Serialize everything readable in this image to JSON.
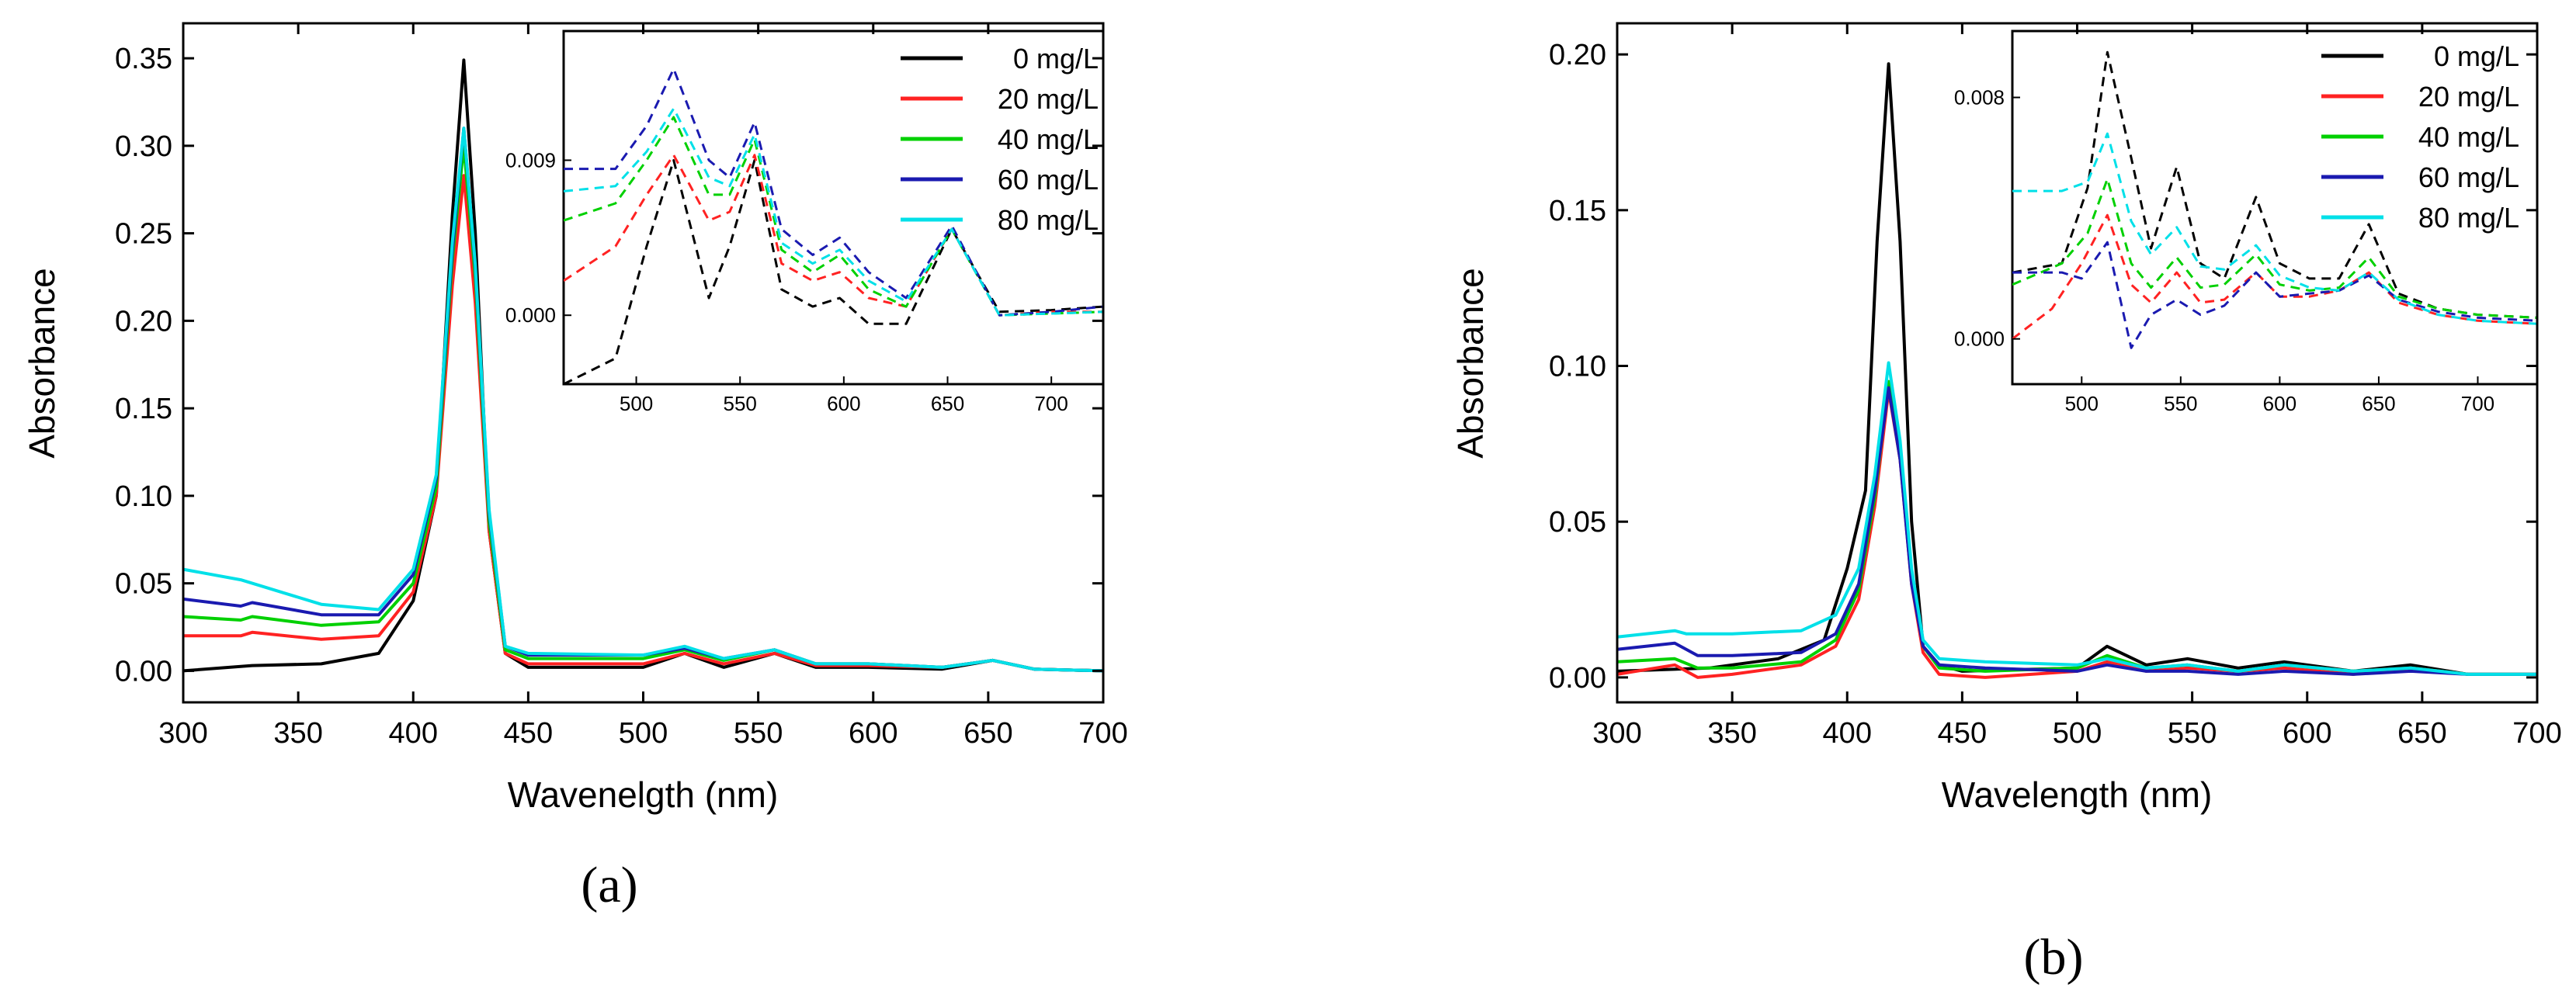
{
  "colors": {
    "0 mg/L": "#000000",
    "20 mg/L": "#ff2222",
    "40 mg/L": "#00d000",
    "60 mg/L": "#1a1ab0",
    "80 mg/L": "#00e0e8"
  },
  "chart_data": [
    {
      "panel": "(a)",
      "type": "line",
      "xlabel": "Wavenelgth (nm)",
      "ylabel": "Absorbance",
      "xlim": [
        300,
        700
      ],
      "ylim": [
        -0.018,
        0.37
      ],
      "xticks": [
        "300",
        "350",
        "400",
        "450",
        "500",
        "550",
        "600",
        "650",
        "700"
      ],
      "yticks": [
        "0.00",
        "0.05",
        "0.10",
        "0.15",
        "0.20",
        "0.25",
        "0.30",
        "0.35"
      ],
      "legend": [
        "0 mg/L",
        "20 mg/L",
        "40 mg/L",
        "60 mg/L",
        "80 mg/L"
      ],
      "series": [
        {
          "name": "0 mg/L",
          "x": [
            300,
            330,
            360,
            385,
            400,
            410,
            417,
            422,
            427,
            433,
            440,
            450,
            500,
            518,
            535,
            557,
            575,
            598,
            630,
            652,
            670,
            700
          ],
          "y": [
            0.0,
            0.003,
            0.004,
            0.01,
            0.04,
            0.1,
            0.26,
            0.349,
            0.25,
            0.08,
            0.01,
            0.002,
            0.002,
            0.01,
            0.002,
            0.01,
            0.002,
            0.002,
            0.001,
            0.006,
            0.001,
            0.0
          ]
        },
        {
          "name": "20 mg/L",
          "x": [
            300,
            325,
            330,
            360,
            385,
            400,
            410,
            417,
            422,
            427,
            433,
            440,
            450,
            500,
            518,
            535,
            557,
            575,
            598,
            630,
            652,
            670,
            700
          ],
          "y": [
            0.02,
            0.02,
            0.022,
            0.018,
            0.02,
            0.045,
            0.1,
            0.22,
            0.283,
            0.21,
            0.08,
            0.01,
            0.004,
            0.004,
            0.01,
            0.004,
            0.01,
            0.003,
            0.003,
            0.002,
            0.006,
            0.001,
            0.0
          ]
        },
        {
          "name": "40 mg/L",
          "x": [
            300,
            325,
            330,
            360,
            385,
            400,
            410,
            417,
            422,
            427,
            433,
            440,
            450,
            500,
            518,
            535,
            557,
            575,
            598,
            630,
            652,
            670,
            700
          ],
          "y": [
            0.031,
            0.029,
            0.031,
            0.026,
            0.028,
            0.05,
            0.105,
            0.235,
            0.3,
            0.225,
            0.085,
            0.012,
            0.007,
            0.007,
            0.012,
            0.006,
            0.012,
            0.004,
            0.004,
            0.002,
            0.006,
            0.001,
            0.0
          ]
        },
        {
          "name": "60 mg/L",
          "x": [
            300,
            325,
            330,
            360,
            385,
            400,
            410,
            417,
            422,
            427,
            433,
            440,
            450,
            500,
            518,
            535,
            557,
            575,
            598,
            630,
            652,
            670,
            700
          ],
          "y": [
            0.041,
            0.037,
            0.039,
            0.032,
            0.032,
            0.055,
            0.11,
            0.24,
            0.31,
            0.23,
            0.09,
            0.014,
            0.009,
            0.009,
            0.013,
            0.007,
            0.012,
            0.004,
            0.004,
            0.002,
            0.006,
            0.001,
            0.0
          ]
        },
        {
          "name": "80 mg/L",
          "x": [
            300,
            325,
            330,
            360,
            385,
            400,
            410,
            417,
            422,
            427,
            433,
            440,
            450,
            500,
            518,
            535,
            557,
            575,
            598,
            630,
            652,
            670,
            700
          ],
          "y": [
            0.058,
            0.052,
            0.05,
            0.038,
            0.035,
            0.058,
            0.112,
            0.245,
            0.31,
            0.232,
            0.092,
            0.014,
            0.01,
            0.009,
            0.014,
            0.007,
            0.012,
            0.004,
            0.004,
            0.002,
            0.006,
            0.001,
            0.0
          ]
        }
      ],
      "inset": {
        "xlim": [
          465,
          725
        ],
        "ylim": [
          -0.004,
          0.0165
        ],
        "xticks": [
          "500",
          "550",
          "600",
          "650",
          "700"
        ],
        "yticks": [
          "0.000",
          "0.009"
        ],
        "series": [
          {
            "name": "0 mg/L",
            "x": [
              465,
              490,
              505,
              518,
              535,
              545,
              557,
              570,
              585,
              598,
              612,
              630,
              652,
              675,
              700,
              725
            ],
            "y": [
              -0.004,
              -0.0025,
              0.004,
              0.009,
              0.001,
              0.004,
              0.009,
              0.0015,
              0.0005,
              0.001,
              -0.0005,
              -0.0005,
              0.005,
              0.0002,
              0.0003,
              0.0005
            ]
          },
          {
            "name": "20 mg/L",
            "x": [
              465,
              490,
              505,
              518,
              535,
              545,
              557,
              570,
              585,
              598,
              612,
              630,
              652,
              675,
              700,
              725
            ],
            "y": [
              0.002,
              0.004,
              0.007,
              0.0093,
              0.0055,
              0.006,
              0.0093,
              0.003,
              0.002,
              0.0025,
              0.001,
              0.0005,
              0.005,
              0.0,
              0.0002,
              0.0002
            ]
          },
          {
            "name": "40 mg/L",
            "x": [
              465,
              490,
              505,
              518,
              535,
              545,
              557,
              570,
              585,
              598,
              612,
              630,
              652,
              675,
              700,
              725
            ],
            "y": [
              0.0055,
              0.0065,
              0.009,
              0.0115,
              0.007,
              0.007,
              0.0102,
              0.0038,
              0.0025,
              0.0035,
              0.0015,
              0.0005,
              0.005,
              0.0,
              0.0001,
              0.0002
            ]
          },
          {
            "name": "60 mg/L",
            "x": [
              465,
              490,
              505,
              518,
              535,
              545,
              557,
              570,
              585,
              598,
              612,
              630,
              652,
              675,
              700,
              725
            ],
            "y": [
              0.0085,
              0.0085,
              0.011,
              0.0143,
              0.009,
              0.008,
              0.0112,
              0.005,
              0.0035,
              0.0045,
              0.0025,
              0.001,
              0.0052,
              0.0,
              0.0002,
              0.0005
            ]
          },
          {
            "name": "80 mg/L",
            "x": [
              465,
              490,
              505,
              518,
              535,
              545,
              557,
              570,
              585,
              598,
              612,
              630,
              652,
              675,
              700,
              725
            ],
            "y": [
              0.0072,
              0.0075,
              0.0095,
              0.012,
              0.008,
              0.0075,
              0.0105,
              0.0042,
              0.003,
              0.0038,
              0.002,
              0.0008,
              0.005,
              0.0,
              0.0001,
              0.0002
            ]
          }
        ]
      }
    },
    {
      "panel": "(b)",
      "type": "line",
      "xlabel": "Wavelength (nm)",
      "ylabel": "Absorbance",
      "xlim": [
        300,
        700
      ],
      "ylim": [
        -0.008,
        0.21
      ],
      "xticks": [
        "300",
        "350",
        "400",
        "450",
        "500",
        "550",
        "600",
        "650",
        "700"
      ],
      "yticks": [
        "0.00",
        "0.05",
        "0.10",
        "0.15",
        "0.20"
      ],
      "legend": [
        "0 mg/L",
        "20 mg/L",
        "40 mg/L",
        "60 mg/L",
        "80 mg/L"
      ],
      "series": [
        {
          "name": "0 mg/L",
          "x": [
            300,
            340,
            370,
            390,
            400,
            408,
            413,
            418,
            423,
            428,
            433,
            440,
            450,
            500,
            513,
            530,
            548,
            570,
            590,
            620,
            645,
            670,
            700
          ],
          "y": [
            0.002,
            0.003,
            0.006,
            0.012,
            0.035,
            0.06,
            0.14,
            0.197,
            0.14,
            0.05,
            0.01,
            0.004,
            0.002,
            0.003,
            0.01,
            0.004,
            0.006,
            0.003,
            0.005,
            0.002,
            0.004,
            0.001,
            0.001
          ]
        },
        {
          "name": "20 mg/L",
          "x": [
            300,
            325,
            335,
            350,
            380,
            395,
            405,
            412,
            418,
            423,
            428,
            433,
            440,
            460,
            500,
            513,
            530,
            548,
            570,
            590,
            620,
            645,
            670,
            700
          ],
          "y": [
            0.001,
            0.004,
            0.0,
            0.001,
            0.004,
            0.01,
            0.025,
            0.055,
            0.092,
            0.07,
            0.03,
            0.008,
            0.001,
            0.0,
            0.002,
            0.005,
            0.002,
            0.003,
            0.002,
            0.003,
            0.001,
            0.003,
            0.001,
            0.001
          ]
        },
        {
          "name": "40 mg/L",
          "x": [
            300,
            325,
            335,
            350,
            380,
            395,
            405,
            412,
            418,
            423,
            428,
            433,
            440,
            460,
            500,
            513,
            530,
            548,
            570,
            590,
            620,
            645,
            670,
            700
          ],
          "y": [
            0.005,
            0.006,
            0.003,
            0.003,
            0.005,
            0.012,
            0.028,
            0.058,
            0.095,
            0.072,
            0.032,
            0.01,
            0.003,
            0.002,
            0.003,
            0.007,
            0.003,
            0.004,
            0.002,
            0.004,
            0.002,
            0.003,
            0.001,
            0.001
          ]
        },
        {
          "name": "60 mg/L",
          "x": [
            300,
            325,
            335,
            350,
            380,
            395,
            405,
            412,
            418,
            423,
            428,
            433,
            440,
            460,
            500,
            513,
            530,
            548,
            570,
            590,
            620,
            645,
            670,
            700
          ],
          "y": [
            0.009,
            0.011,
            0.007,
            0.007,
            0.008,
            0.014,
            0.03,
            0.06,
            0.093,
            0.07,
            0.03,
            0.01,
            0.004,
            0.003,
            0.002,
            0.004,
            0.002,
            0.002,
            0.001,
            0.002,
            0.001,
            0.002,
            0.001,
            0.001
          ]
        },
        {
          "name": "80 mg/L",
          "x": [
            300,
            325,
            330,
            350,
            380,
            395,
            405,
            412,
            418,
            423,
            428,
            433,
            440,
            460,
            500,
            513,
            530,
            548,
            570,
            590,
            620,
            645,
            670,
            700
          ],
          "y": [
            0.013,
            0.015,
            0.014,
            0.014,
            0.015,
            0.02,
            0.035,
            0.065,
            0.101,
            0.076,
            0.035,
            0.012,
            0.006,
            0.005,
            0.004,
            0.006,
            0.003,
            0.004,
            0.002,
            0.004,
            0.002,
            0.003,
            0.001,
            0.001
          ]
        }
      ],
      "inset": {
        "xlim": [
          465,
          730
        ],
        "ylim": [
          -0.0015,
          0.0102
        ],
        "xticks": [
          "500",
          "550",
          "600",
          "650",
          "700"
        ],
        "yticks": [
          "0.000",
          "0.008"
        ],
        "series": [
          {
            "name": "0 mg/L",
            "x": [
              465,
              490,
              503,
              513,
              525,
              535,
              548,
              560,
              572,
              588,
              600,
              615,
              630,
              645,
              660,
              680,
              700,
              730
            ],
            "y": [
              0.0022,
              0.0025,
              0.005,
              0.0095,
              0.006,
              0.003,
              0.0057,
              0.0025,
              0.002,
              0.0047,
              0.0025,
              0.002,
              0.002,
              0.0038,
              0.0015,
              0.001,
              0.0008,
              0.0007
            ]
          },
          {
            "name": "20 mg/L",
            "x": [
              465,
              485,
              500,
              513,
              525,
              535,
              548,
              560,
              572,
              588,
              600,
              615,
              630,
              645,
              660,
              680,
              700,
              730
            ],
            "y": [
              0.0,
              0.001,
              0.0025,
              0.0041,
              0.0018,
              0.0012,
              0.0022,
              0.0012,
              0.0013,
              0.0022,
              0.0014,
              0.0014,
              0.0016,
              0.0022,
              0.0012,
              0.0008,
              0.0006,
              0.0005
            ]
          },
          {
            "name": "40 mg/L",
            "x": [
              465,
              490,
              503,
              513,
              525,
              535,
              548,
              560,
              572,
              588,
              600,
              615,
              630,
              645,
              660,
              680,
              700,
              730
            ],
            "y": [
              0.0018,
              0.0025,
              0.0035,
              0.0053,
              0.0025,
              0.0017,
              0.0027,
              0.0017,
              0.0018,
              0.0028,
              0.0018,
              0.0016,
              0.0017,
              0.0027,
              0.0014,
              0.001,
              0.0008,
              0.0007
            ]
          },
          {
            "name": "60 mg/L",
            "x": [
              465,
              490,
              500,
              513,
              525,
              535,
              548,
              560,
              572,
              588,
              600,
              615,
              630,
              645,
              660,
              680,
              700,
              730
            ],
            "y": [
              0.0022,
              0.0022,
              0.002,
              0.0032,
              -0.0003,
              0.0008,
              0.0013,
              0.0008,
              0.0011,
              0.0022,
              0.0014,
              0.0015,
              0.0016,
              0.0021,
              0.0013,
              0.0009,
              0.0007,
              0.0006
            ]
          },
          {
            "name": "80 mg/L",
            "x": [
              465,
              490,
              503,
              513,
              525,
              535,
              548,
              560,
              572,
              588,
              600,
              615,
              630,
              645,
              660,
              680,
              700,
              730
            ],
            "y": [
              0.0049,
              0.0049,
              0.0052,
              0.0068,
              0.0039,
              0.0028,
              0.0037,
              0.0024,
              0.0023,
              0.0031,
              0.0021,
              0.0017,
              0.0016,
              0.0022,
              0.0013,
              0.0008,
              0.0006,
              0.0005
            ]
          }
        ]
      }
    }
  ]
}
